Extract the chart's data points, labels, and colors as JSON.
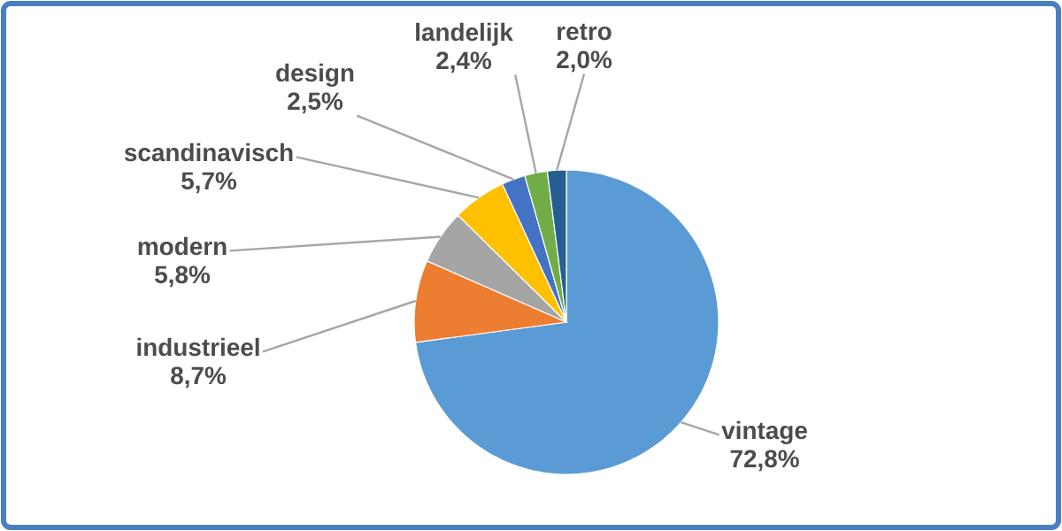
{
  "chart_data": {
    "type": "pie",
    "categories": [
      "vintage",
      "industrieel",
      "modern",
      "scandinavisch",
      "design",
      "landelijk",
      "retro"
    ],
    "values": [
      72.8,
      8.7,
      5.8,
      5.7,
      2.5,
      2.4,
      2.0
    ],
    "value_labels": [
      "72,8%",
      "8,7%",
      "5,8%",
      "5,7%",
      "2,5%",
      "2,4%",
      "2,0%"
    ],
    "colors": [
      "#5b9bd5",
      "#ed7d31",
      "#a5a5a5",
      "#ffc000",
      "#4472c4",
      "#70ad47",
      "#255e91"
    ]
  }
}
